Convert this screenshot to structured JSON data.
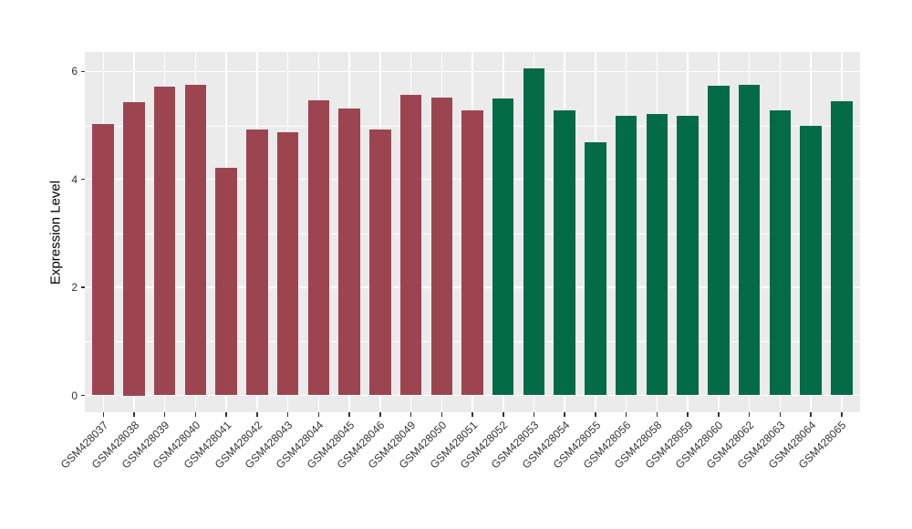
{
  "chart_data": {
    "type": "bar",
    "title": "",
    "xlabel": "",
    "ylabel": "Expression Level",
    "ylim": [
      0,
      6.4
    ],
    "yticks": [
      0,
      2,
      4,
      6
    ],
    "yticks_minor": [
      1,
      3,
      5
    ],
    "grid": "on",
    "legend": "none",
    "categories": [
      "GSM428037",
      "GSM428038",
      "GSM428039",
      "GSM428040",
      "GSM428041",
      "GSM428042",
      "GSM428043",
      "GSM428044",
      "GSM428045",
      "GSM428046",
      "GSM428049",
      "GSM428050",
      "GSM428051",
      "GSM428052",
      "GSM428053",
      "GSM428054",
      "GSM428055",
      "GSM428056",
      "GSM428058",
      "GSM428059",
      "GSM428060",
      "GSM428062",
      "GSM428063",
      "GSM428064",
      "GSM428065"
    ],
    "values": [
      5.02,
      5.43,
      5.72,
      5.75,
      4.21,
      4.93,
      4.88,
      5.46,
      5.32,
      4.92,
      5.56,
      5.52,
      5.28,
      5.5,
      6.06,
      5.28,
      4.68,
      5.17,
      5.21,
      5.17,
      5.73,
      5.75,
      5.28,
      4.99,
      5.45
    ],
    "group_of_bar": [
      0,
      0,
      0,
      0,
      0,
      0,
      0,
      0,
      0,
      0,
      0,
      0,
      0,
      1,
      1,
      1,
      1,
      1,
      1,
      1,
      1,
      1,
      1,
      1,
      1
    ],
    "groups": [
      {
        "name": "group-1",
        "color": "#9C4551"
      },
      {
        "name": "group-2",
        "color": "#036B46"
      }
    ]
  },
  "style": {
    "figure_background": "#FFFFFF",
    "panel_background": "#EBEBEB",
    "gridline_color": "#FFFFFF",
    "axis_text_color": "#333333",
    "axis_title_color": "#000000",
    "tick_color": "#333333"
  }
}
